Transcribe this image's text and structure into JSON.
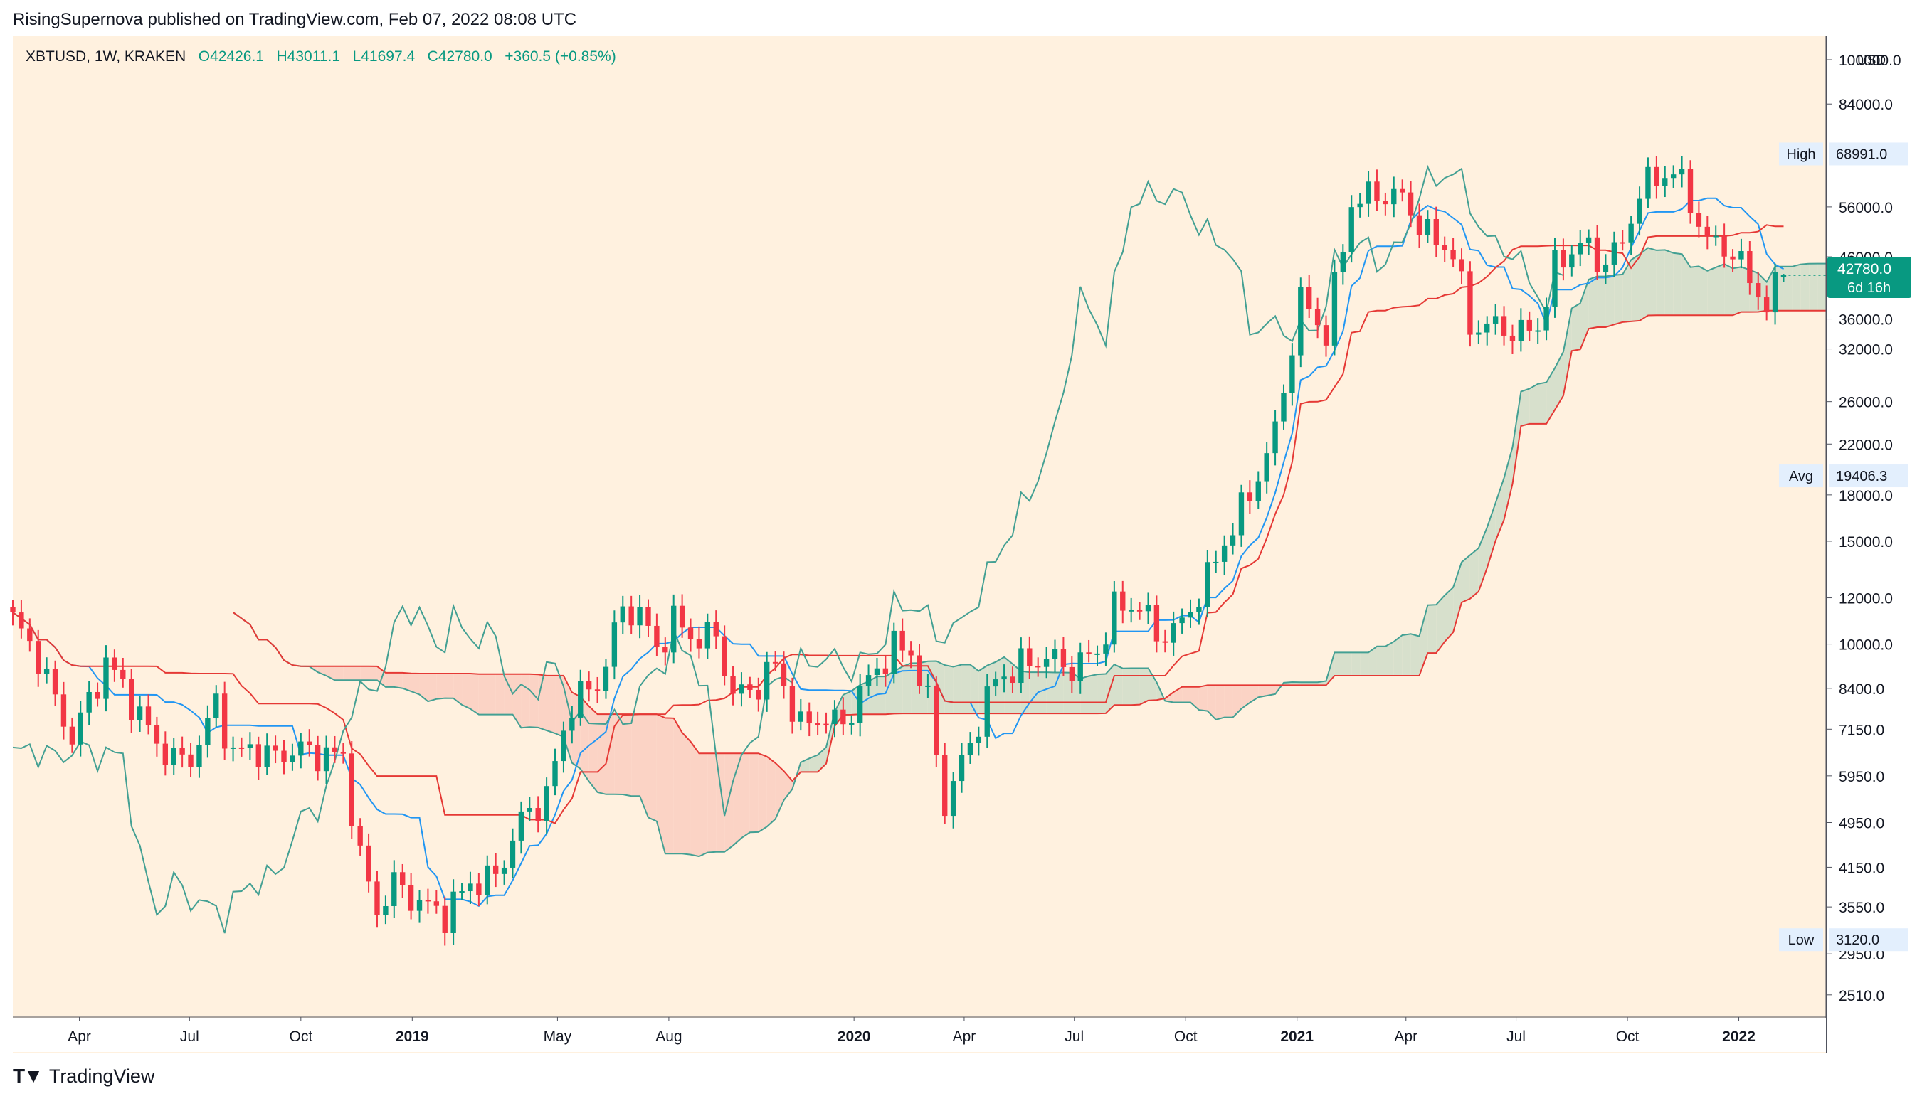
{
  "header": {
    "published": "RisingSupernova published on TradingView.com, Feb 07, 2022 08:08 UTC"
  },
  "legend": {
    "symbol": "XBTUSD, 1W, KRAKEN",
    "open": "O42426.1",
    "high": "H43011.1",
    "low": "L41697.4",
    "close": "C42780.0",
    "change": "+360.5 (+0.85%)"
  },
  "footer": {
    "brand": "TradingView"
  },
  "colors": {
    "background": "#fff1df",
    "up": "#089981",
    "down": "#f23645",
    "tenkan": "#2196f3",
    "kijun": "#e53935",
    "span_a": "#43a093",
    "chikou": "#43a093",
    "cloud_bull": "#d7e0cc",
    "cloud_bear": "#fbd3c5"
  },
  "chart_data": {
    "type": "candlestick",
    "title": "",
    "symbol": "XBTUSD",
    "interval": "1W",
    "exchange": "KRAKEN",
    "y_scale": "log",
    "y_range": [
      2300,
      110000
    ],
    "currency": "USD",
    "y_ticks": [
      "100000.0",
      "84000.0",
      "56000.0",
      "46000.0",
      "36000.0",
      "32000.0",
      "26000.0",
      "22000.0",
      "18000.0",
      "15000.0",
      "12000.0",
      "10000.0",
      "8400.0",
      "7150.0",
      "5950.0",
      "4950.0",
      "4150.0",
      "3550.0",
      "2950.0",
      "2510.0"
    ],
    "x_ticks": [
      "Apr",
      "Jul",
      "Oct",
      "2019",
      "May",
      "Aug",
      "2020",
      "Apr",
      "Jul",
      "Oct",
      "2021",
      "Apr",
      "Jul",
      "Oct",
      "2022"
    ],
    "markers": {
      "high": {
        "label": "High",
        "value": "68991.0"
      },
      "avg": {
        "label": "Avg",
        "value": "19406.3"
      },
      "low": {
        "label": "Low",
        "value": "3120.0"
      },
      "last": {
        "value": "42780.0",
        "countdown": "6d 16h"
      }
    },
    "close_anchors": [
      [
        "2018-02-05",
        11000
      ],
      [
        "2018-02-26",
        9500
      ],
      [
        "2018-03-12",
        8000
      ],
      [
        "2018-03-26",
        6900
      ],
      [
        "2018-04-09",
        8000
      ],
      [
        "2018-04-23",
        9300
      ],
      [
        "2018-05-07",
        8500
      ],
      [
        "2018-05-21",
        7500
      ],
      [
        "2018-06-11",
        6500
      ],
      [
        "2018-06-25",
        6300
      ],
      [
        "2018-07-09",
        6700
      ],
      [
        "2018-07-23",
        8000
      ],
      [
        "2018-08-06",
        6400
      ],
      [
        "2018-08-20",
        6700
      ],
      [
        "2018-09-03",
        6400
      ],
      [
        "2018-09-17",
        6500
      ],
      [
        "2018-10-01",
        6600
      ],
      [
        "2018-10-15",
        6500
      ],
      [
        "2018-11-05",
        6400
      ],
      [
        "2018-11-19",
        4300
      ],
      [
        "2018-12-03",
        3500
      ],
      [
        "2018-12-17",
        3900
      ],
      [
        "2019-01-07",
        3600
      ],
      [
        "2019-01-28",
        3450
      ],
      [
        "2019-02-18",
        3900
      ],
      [
        "2019-03-11",
        4000
      ],
      [
        "2019-04-01",
        5000
      ],
      [
        "2019-04-22",
        5500
      ],
      [
        "2019-05-13",
        8000
      ],
      [
        "2019-06-03",
        8500
      ],
      [
        "2019-06-24",
        11500
      ],
      [
        "2019-07-08",
        11300
      ],
      [
        "2019-07-22",
        9800
      ],
      [
        "2019-08-05",
        11000
      ],
      [
        "2019-08-19",
        10300
      ],
      [
        "2019-09-09",
        10300
      ],
      [
        "2019-09-23",
        8200
      ],
      [
        "2019-10-07",
        8300
      ],
      [
        "2019-10-28",
        9200
      ],
      [
        "2019-11-18",
        7200
      ],
      [
        "2019-12-02",
        7500
      ],
      [
        "2019-12-23",
        7300
      ],
      [
        "2020-01-13",
        8700
      ],
      [
        "2020-02-03",
        9900
      ],
      [
        "2020-02-17",
        9700
      ],
      [
        "2020-03-02",
        8000
      ],
      [
        "2020-03-16",
        5300
      ],
      [
        "2020-04-06",
        6800
      ],
      [
        "2020-04-27",
        8700
      ],
      [
        "2020-05-18",
        9200
      ],
      [
        "2020-06-08",
        9500
      ],
      [
        "2020-06-29",
        9100
      ],
      [
        "2020-07-20",
        9700
      ],
      [
        "2020-08-03",
        11500
      ],
      [
        "2020-08-24",
        11700
      ],
      [
        "2020-09-07",
        10300
      ],
      [
        "2020-09-28",
        10800
      ],
      [
        "2020-10-19",
        13000
      ],
      [
        "2020-11-09",
        16000
      ],
      [
        "2020-11-23",
        18000
      ],
      [
        "2020-12-14",
        23000
      ],
      [
        "2021-01-04",
        39000
      ],
      [
        "2021-01-25",
        34000
      ],
      [
        "2021-02-15",
        57000
      ],
      [
        "2021-03-08",
        59000
      ],
      [
        "2021-03-29",
        58000
      ],
      [
        "2021-04-19",
        50000
      ],
      [
        "2021-05-10",
        47000
      ],
      [
        "2021-05-24",
        35000
      ],
      [
        "2021-06-14",
        35000
      ],
      [
        "2021-07-05",
        34000
      ],
      [
        "2021-07-19",
        35000
      ],
      [
        "2021-08-02",
        44000
      ],
      [
        "2021-08-23",
        49000
      ],
      [
        "2021-09-06",
        45000
      ],
      [
        "2021-09-27",
        48000
      ],
      [
        "2021-10-11",
        60000
      ],
      [
        "2021-11-08",
        65000
      ],
      [
        "2021-11-22",
        57000
      ],
      [
        "2021-12-06",
        49000
      ],
      [
        "2021-12-27",
        47000
      ],
      [
        "2022-01-10",
        42000
      ],
      [
        "2022-01-24",
        38000
      ],
      [
        "2022-02-07",
        42780
      ]
    ]
  }
}
